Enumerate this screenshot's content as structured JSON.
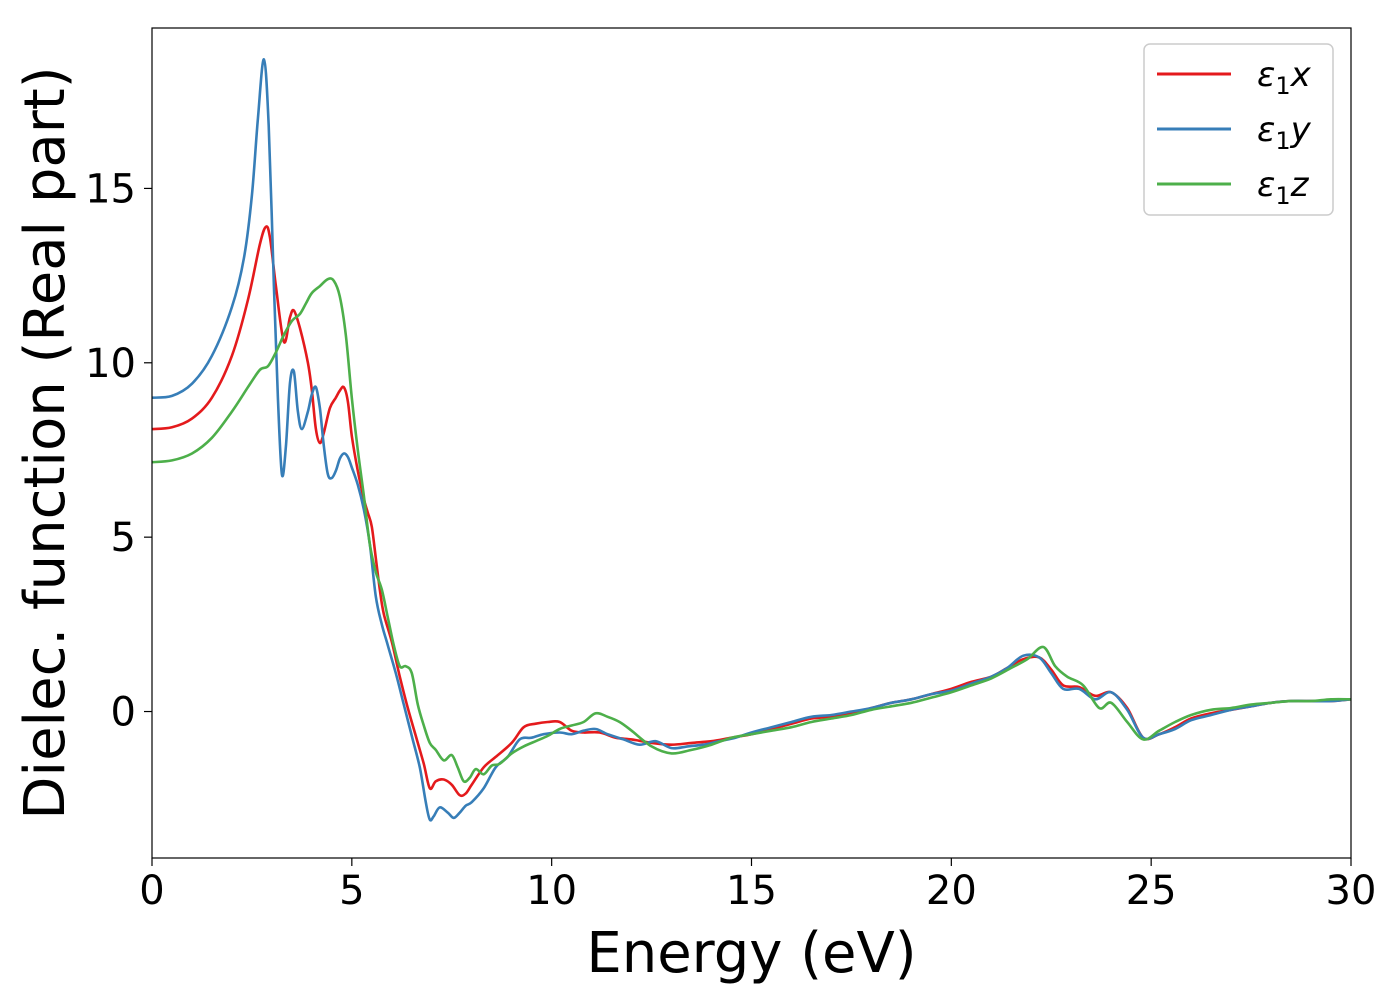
{
  "chart_data": {
    "type": "line",
    "title": "",
    "xlabel": "Energy (eV)",
    "ylabel": "Dielec. function (Real part)",
    "xlim": [
      0,
      30
    ],
    "ylim": [
      -4.2,
      19.6
    ],
    "xticks": [
      0,
      5,
      10,
      15,
      20,
      25,
      30
    ],
    "yticks": [
      0,
      5,
      10,
      15
    ],
    "grid": false,
    "legend_position": "top-right",
    "series": [
      {
        "name": "ε1x",
        "legend_base": "ε",
        "legend_sub": "1",
        "legend_tail": "x",
        "color": "#e41a1c",
        "points": [
          [
            0,
            8.1
          ],
          [
            0.5,
            8.15
          ],
          [
            1.0,
            8.4
          ],
          [
            1.5,
            9.0
          ],
          [
            2.0,
            10.2
          ],
          [
            2.4,
            11.8
          ],
          [
            2.7,
            13.4
          ],
          [
            2.85,
            13.9
          ],
          [
            2.95,
            13.6
          ],
          [
            3.1,
            12.2
          ],
          [
            3.3,
            10.6
          ],
          [
            3.45,
            11.3
          ],
          [
            3.55,
            11.5
          ],
          [
            3.7,
            11.0
          ],
          [
            3.9,
            10.0
          ],
          [
            4.0,
            9.2
          ],
          [
            4.1,
            8.1
          ],
          [
            4.2,
            7.7
          ],
          [
            4.3,
            8.0
          ],
          [
            4.45,
            8.7
          ],
          [
            4.6,
            9.0
          ],
          [
            4.7,
            9.2
          ],
          [
            4.8,
            9.3
          ],
          [
            4.9,
            8.9
          ],
          [
            5.0,
            7.9
          ],
          [
            5.15,
            6.9
          ],
          [
            5.3,
            6.1
          ],
          [
            5.4,
            5.7
          ],
          [
            5.5,
            5.3
          ],
          [
            5.6,
            4.4
          ],
          [
            5.7,
            3.5
          ],
          [
            5.8,
            2.8
          ],
          [
            6.0,
            2.0
          ],
          [
            6.2,
            1.0
          ],
          [
            6.4,
            0.1
          ],
          [
            6.6,
            -0.7
          ],
          [
            6.8,
            -1.5
          ],
          [
            6.95,
            -2.2
          ],
          [
            7.1,
            -2.0
          ],
          [
            7.3,
            -1.95
          ],
          [
            7.5,
            -2.1
          ],
          [
            7.7,
            -2.4
          ],
          [
            7.85,
            -2.35
          ],
          [
            8.0,
            -2.1
          ],
          [
            8.3,
            -1.6
          ],
          [
            8.6,
            -1.3
          ],
          [
            9.0,
            -0.9
          ],
          [
            9.3,
            -0.45
          ],
          [
            9.6,
            -0.35
          ],
          [
            9.9,
            -0.3
          ],
          [
            10.2,
            -0.3
          ],
          [
            10.5,
            -0.55
          ],
          [
            10.8,
            -0.6
          ],
          [
            11.2,
            -0.6
          ],
          [
            11.6,
            -0.75
          ],
          [
            12.0,
            -0.8
          ],
          [
            12.5,
            -0.9
          ],
          [
            13.0,
            -0.95
          ],
          [
            13.5,
            -0.9
          ],
          [
            14.0,
            -0.85
          ],
          [
            14.5,
            -0.75
          ],
          [
            15.0,
            -0.65
          ],
          [
            15.5,
            -0.5
          ],
          [
            16.0,
            -0.35
          ],
          [
            16.5,
            -0.2
          ],
          [
            17.0,
            -0.15
          ],
          [
            17.5,
            -0.05
          ],
          [
            18.0,
            0.1
          ],
          [
            18.5,
            0.25
          ],
          [
            19.0,
            0.35
          ],
          [
            19.5,
            0.5
          ],
          [
            20.0,
            0.65
          ],
          [
            20.5,
            0.85
          ],
          [
            21.0,
            1.0
          ],
          [
            21.4,
            1.25
          ],
          [
            21.8,
            1.5
          ],
          [
            22.2,
            1.55
          ],
          [
            22.5,
            1.2
          ],
          [
            22.8,
            0.75
          ],
          [
            23.2,
            0.7
          ],
          [
            23.6,
            0.45
          ],
          [
            24.0,
            0.55
          ],
          [
            24.4,
            0.1
          ],
          [
            24.8,
            -0.75
          ],
          [
            25.2,
            -0.65
          ],
          [
            25.6,
            -0.45
          ],
          [
            26.0,
            -0.2
          ],
          [
            26.5,
            -0.05
          ],
          [
            27.0,
            0.05
          ],
          [
            27.5,
            0.15
          ],
          [
            28.0,
            0.25
          ],
          [
            28.5,
            0.3
          ],
          [
            29.0,
            0.3
          ],
          [
            29.5,
            0.3
          ],
          [
            30.0,
            0.35
          ]
        ]
      },
      {
        "name": "ε1y",
        "legend_base": "ε",
        "legend_sub": "1",
        "legend_tail": "y",
        "color": "#377eb8",
        "points": [
          [
            0,
            9.0
          ],
          [
            0.5,
            9.05
          ],
          [
            1.0,
            9.4
          ],
          [
            1.5,
            10.2
          ],
          [
            2.0,
            11.6
          ],
          [
            2.3,
            13.0
          ],
          [
            2.5,
            14.8
          ],
          [
            2.65,
            17.0
          ],
          [
            2.8,
            18.7
          ],
          [
            2.92,
            16.8
          ],
          [
            3.05,
            12.2
          ],
          [
            3.15,
            9.0
          ],
          [
            3.25,
            6.8
          ],
          [
            3.35,
            7.6
          ],
          [
            3.45,
            9.4
          ],
          [
            3.55,
            9.75
          ],
          [
            3.65,
            8.6
          ],
          [
            3.75,
            8.1
          ],
          [
            3.9,
            8.6
          ],
          [
            4.0,
            9.1
          ],
          [
            4.1,
            9.3
          ],
          [
            4.2,
            8.7
          ],
          [
            4.3,
            7.6
          ],
          [
            4.4,
            6.8
          ],
          [
            4.5,
            6.7
          ],
          [
            4.6,
            6.9
          ],
          [
            4.7,
            7.25
          ],
          [
            4.8,
            7.4
          ],
          [
            4.9,
            7.3
          ],
          [
            5.0,
            7.0
          ],
          [
            5.15,
            6.5
          ],
          [
            5.3,
            5.8
          ],
          [
            5.45,
            4.8
          ],
          [
            5.6,
            3.3
          ],
          [
            5.75,
            2.5
          ],
          [
            5.9,
            1.9
          ],
          [
            6.1,
            1.1
          ],
          [
            6.3,
            0.2
          ],
          [
            6.5,
            -0.7
          ],
          [
            6.7,
            -1.6
          ],
          [
            6.85,
            -2.6
          ],
          [
            6.95,
            -3.1
          ],
          [
            7.05,
            -3.0
          ],
          [
            7.2,
            -2.75
          ],
          [
            7.4,
            -2.9
          ],
          [
            7.55,
            -3.05
          ],
          [
            7.7,
            -2.9
          ],
          [
            7.85,
            -2.7
          ],
          [
            8.0,
            -2.6
          ],
          [
            8.3,
            -2.2
          ],
          [
            8.6,
            -1.6
          ],
          [
            8.9,
            -1.3
          ],
          [
            9.2,
            -0.8
          ],
          [
            9.5,
            -0.75
          ],
          [
            9.8,
            -0.65
          ],
          [
            10.2,
            -0.6
          ],
          [
            10.5,
            -0.65
          ],
          [
            10.8,
            -0.55
          ],
          [
            11.1,
            -0.5
          ],
          [
            11.4,
            -0.65
          ],
          [
            11.8,
            -0.8
          ],
          [
            12.2,
            -0.95
          ],
          [
            12.6,
            -0.85
          ],
          [
            13.0,
            -1.05
          ],
          [
            13.4,
            -1.0
          ],
          [
            13.8,
            -0.95
          ],
          [
            14.2,
            -0.85
          ],
          [
            14.6,
            -0.75
          ],
          [
            15.0,
            -0.6
          ],
          [
            15.5,
            -0.45
          ],
          [
            16.0,
            -0.3
          ],
          [
            16.5,
            -0.15
          ],
          [
            17.0,
            -0.1
          ],
          [
            17.5,
            0.0
          ],
          [
            18.0,
            0.1
          ],
          [
            18.5,
            0.25
          ],
          [
            19.0,
            0.35
          ],
          [
            19.5,
            0.5
          ],
          [
            20.0,
            0.6
          ],
          [
            20.5,
            0.8
          ],
          [
            21.0,
            1.0
          ],
          [
            21.4,
            1.25
          ],
          [
            21.8,
            1.6
          ],
          [
            22.2,
            1.55
          ],
          [
            22.5,
            1.1
          ],
          [
            22.8,
            0.65
          ],
          [
            23.2,
            0.65
          ],
          [
            23.6,
            0.35
          ],
          [
            24.0,
            0.55
          ],
          [
            24.4,
            0.05
          ],
          [
            24.8,
            -0.75
          ],
          [
            25.2,
            -0.65
          ],
          [
            25.6,
            -0.5
          ],
          [
            26.0,
            -0.25
          ],
          [
            26.5,
            -0.1
          ],
          [
            27.0,
            0.05
          ],
          [
            27.5,
            0.15
          ],
          [
            28.0,
            0.25
          ],
          [
            28.5,
            0.3
          ],
          [
            29.0,
            0.3
          ],
          [
            29.5,
            0.3
          ],
          [
            30.0,
            0.35
          ]
        ]
      },
      {
        "name": "ε1z",
        "legend_base": "ε",
        "legend_sub": "1",
        "legend_tail": "z",
        "color": "#4daf4a",
        "points": [
          [
            0,
            7.15
          ],
          [
            0.5,
            7.2
          ],
          [
            1.0,
            7.4
          ],
          [
            1.5,
            7.85
          ],
          [
            2.0,
            8.6
          ],
          [
            2.4,
            9.3
          ],
          [
            2.7,
            9.8
          ],
          [
            2.9,
            9.9
          ],
          [
            3.1,
            10.3
          ],
          [
            3.3,
            10.8
          ],
          [
            3.5,
            11.2
          ],
          [
            3.7,
            11.4
          ],
          [
            3.85,
            11.7
          ],
          [
            4.0,
            12.0
          ],
          [
            4.2,
            12.2
          ],
          [
            4.4,
            12.4
          ],
          [
            4.55,
            12.35
          ],
          [
            4.7,
            11.9
          ],
          [
            4.85,
            10.8
          ],
          [
            5.0,
            9.0
          ],
          [
            5.15,
            7.5
          ],
          [
            5.3,
            6.2
          ],
          [
            5.45,
            4.8
          ],
          [
            5.6,
            4.0
          ],
          [
            5.75,
            3.5
          ],
          [
            5.9,
            2.7
          ],
          [
            6.05,
            1.9
          ],
          [
            6.2,
            1.3
          ],
          [
            6.35,
            1.3
          ],
          [
            6.5,
            1.1
          ],
          [
            6.65,
            0.2
          ],
          [
            6.8,
            -0.4
          ],
          [
            6.95,
            -0.9
          ],
          [
            7.1,
            -1.1
          ],
          [
            7.3,
            -1.4
          ],
          [
            7.5,
            -1.25
          ],
          [
            7.65,
            -1.6
          ],
          [
            7.8,
            -2.0
          ],
          [
            7.95,
            -1.9
          ],
          [
            8.1,
            -1.65
          ],
          [
            8.3,
            -1.8
          ],
          [
            8.5,
            -1.55
          ],
          [
            8.7,
            -1.5
          ],
          [
            9.0,
            -1.2
          ],
          [
            9.3,
            -1.0
          ],
          [
            9.6,
            -0.85
          ],
          [
            9.9,
            -0.7
          ],
          [
            10.2,
            -0.5
          ],
          [
            10.5,
            -0.4
          ],
          [
            10.8,
            -0.3
          ],
          [
            11.1,
            -0.05
          ],
          [
            11.4,
            -0.15
          ],
          [
            11.7,
            -0.3
          ],
          [
            12.0,
            -0.55
          ],
          [
            12.5,
            -1.0
          ],
          [
            13.0,
            -1.2
          ],
          [
            13.5,
            -1.1
          ],
          [
            14.0,
            -0.95
          ],
          [
            14.5,
            -0.75
          ],
          [
            15.0,
            -0.65
          ],
          [
            15.5,
            -0.55
          ],
          [
            16.0,
            -0.45
          ],
          [
            16.5,
            -0.3
          ],
          [
            17.0,
            -0.2
          ],
          [
            17.5,
            -0.1
          ],
          [
            18.0,
            0.05
          ],
          [
            18.5,
            0.15
          ],
          [
            19.0,
            0.25
          ],
          [
            19.5,
            0.4
          ],
          [
            20.0,
            0.55
          ],
          [
            20.5,
            0.75
          ],
          [
            21.0,
            0.95
          ],
          [
            21.5,
            1.25
          ],
          [
            21.9,
            1.5
          ],
          [
            22.3,
            1.85
          ],
          [
            22.6,
            1.3
          ],
          [
            22.9,
            1.0
          ],
          [
            23.3,
            0.75
          ],
          [
            23.7,
            0.1
          ],
          [
            24.0,
            0.25
          ],
          [
            24.4,
            -0.3
          ],
          [
            24.8,
            -0.8
          ],
          [
            25.2,
            -0.55
          ],
          [
            25.6,
            -0.3
          ],
          [
            26.0,
            -0.1
          ],
          [
            26.5,
            0.05
          ],
          [
            27.0,
            0.1
          ],
          [
            27.5,
            0.2
          ],
          [
            28.0,
            0.25
          ],
          [
            28.5,
            0.3
          ],
          [
            29.0,
            0.3
          ],
          [
            29.5,
            0.35
          ],
          [
            30.0,
            0.35
          ]
        ]
      }
    ]
  }
}
